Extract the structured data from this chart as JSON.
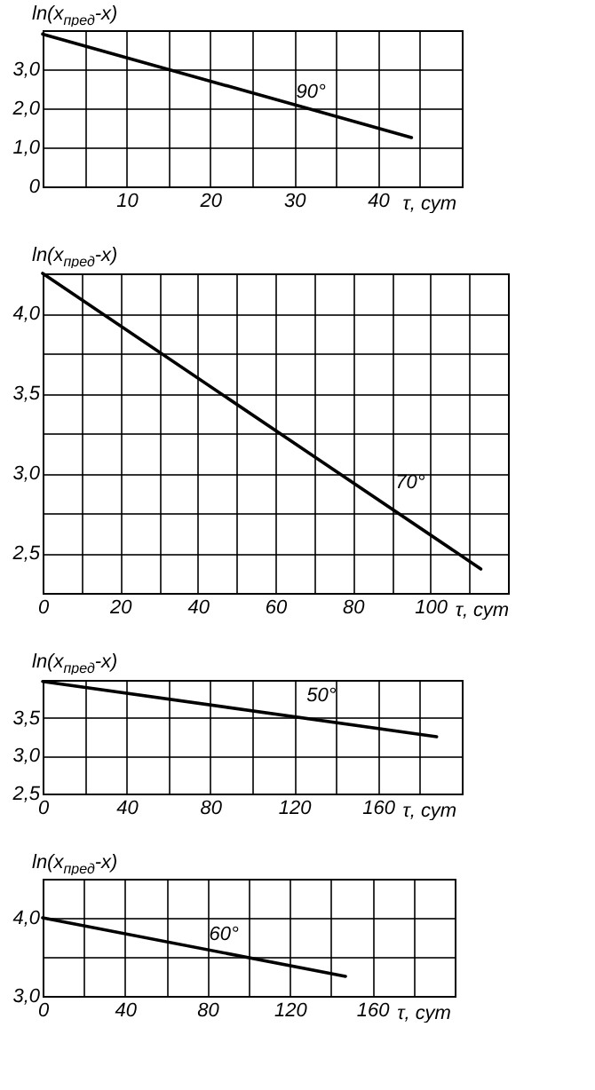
{
  "chart_data": [
    {
      "type": "line",
      "ylabel": "ln(x$_{пред}$-x)",
      "xlabel": "τ, сут",
      "grid": true,
      "marker": "none",
      "line_style": "solid",
      "xlim": [
        0,
        50
      ],
      "ylim": [
        0,
        4
      ],
      "xticks": [
        {
          "value": 0,
          "label": null
        },
        {
          "value": 5,
          "label": null
        },
        10,
        {
          "value": 15,
          "label": null
        },
        20,
        {
          "value": 25,
          "label": null
        },
        30,
        {
          "value": 35,
          "label": null
        },
        40,
        {
          "value": 45,
          "label": null
        }
      ],
      "yticks": [
        0,
        {
          "value": 1,
          "label": "1,0"
        },
        {
          "value": 2,
          "label": "2,0"
        },
        {
          "value": 3,
          "label": "3,0"
        }
      ],
      "series": [
        {
          "color": "#000000",
          "x": [
            0,
            44
          ],
          "values": [
            3.9,
            1.25
          ]
        }
      ],
      "annotations": [
        "90°"
      ]
    },
    {
      "type": "line",
      "ylabel": "ln(x$_{пред}$-x)",
      "xlabel": "τ, сут",
      "grid": true,
      "marker": "none",
      "line_style": "solid",
      "xlim": [
        0,
        120
      ],
      "ylim": [
        2.25,
        4.25
      ],
      "xticks": [
        0,
        {
          "value": 10,
          "label": null
        },
        20,
        {
          "value": 30,
          "label": null
        },
        40,
        {
          "value": 50,
          "label": null
        },
        60,
        {
          "value": 70,
          "label": null
        },
        80,
        {
          "value": 90,
          "label": null
        },
        100,
        {
          "value": 110,
          "label": null
        }
      ],
      "yticks": [
        {
          "value": 2.5,
          "label": "2,5"
        },
        {
          "value": 2.75,
          "label": null
        },
        {
          "value": 3,
          "label": "3,0"
        },
        {
          "value": 3.25,
          "label": null
        },
        {
          "value": 3.5,
          "label": "3,5"
        },
        {
          "value": 3.75,
          "label": null
        },
        {
          "value": 4,
          "label": "4,0"
        }
      ],
      "series": [
        {
          "color": "#000000",
          "x": [
            0,
            113
          ],
          "values": [
            4.25,
            2.4
          ]
        }
      ],
      "annotations": [
        "70°"
      ]
    },
    {
      "type": "line",
      "ylabel": "ln(x$_{пред}$-x)",
      "xlabel": "τ, сут",
      "grid": true,
      "marker": "none",
      "line_style": "solid",
      "xlim": [
        0,
        200
      ],
      "ylim": [
        2.5,
        4
      ],
      "xticks": [
        0,
        {
          "value": 20,
          "label": null
        },
        40,
        {
          "value": 60,
          "label": null
        },
        80,
        {
          "value": 100,
          "label": null
        },
        120,
        {
          "value": 140,
          "label": null
        },
        160,
        {
          "value": 180,
          "label": null
        }
      ],
      "yticks": [
        {
          "value": 2.5,
          "label": "2,5"
        },
        {
          "value": 3,
          "label": "3,0"
        },
        {
          "value": 3.5,
          "label": "3,5"
        }
      ],
      "series": [
        {
          "color": "#000000",
          "x": [
            0,
            188
          ],
          "values": [
            3.98,
            3.25
          ]
        }
      ],
      "annotations": [
        "50°"
      ]
    },
    {
      "type": "line",
      "ylabel": "ln(x$_{пред}$-x)",
      "xlabel": "τ, сут",
      "grid": true,
      "marker": "none",
      "line_style": "solid",
      "xlim": [
        0,
        200
      ],
      "ylim": [
        3,
        4.5
      ],
      "xticks": [
        0,
        {
          "value": 20,
          "label": null
        },
        40,
        {
          "value": 60,
          "label": null
        },
        80,
        {
          "value": 100,
          "label": null
        },
        120,
        {
          "value": 140,
          "label": null
        },
        160,
        {
          "value": 180,
          "label": null
        }
      ],
      "yticks": [
        {
          "value": 3,
          "label": "3,0"
        },
        {
          "value": 3.5,
          "label": null
        },
        {
          "value": 4,
          "label": "4,0"
        }
      ],
      "series": [
        {
          "color": "#000000",
          "x": [
            0,
            147
          ],
          "values": [
            4.0,
            3.25
          ]
        }
      ],
      "annotations": [
        "60°"
      ]
    }
  ]
}
